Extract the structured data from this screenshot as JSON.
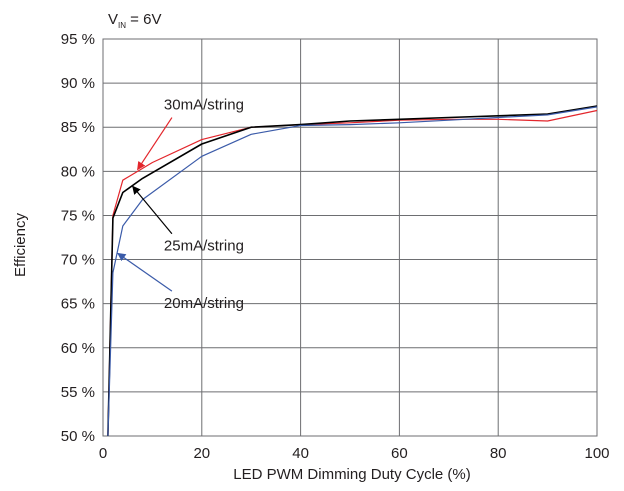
{
  "chart_data": {
    "type": "line",
    "xlabel": "LED PWM Dimming Duty Cycle (%)",
    "ylabel": "Efficiency",
    "xlim": [
      0,
      100
    ],
    "ylim": [
      50,
      95
    ],
    "x_ticks": [
      0,
      20,
      40,
      60,
      80,
      100
    ],
    "x_tick_labels": [
      "0",
      "20",
      "40",
      "60",
      "80",
      "100"
    ],
    "y_ticks": [
      50,
      55,
      60,
      65,
      70,
      75,
      80,
      85,
      90,
      95
    ],
    "y_tick_labels": [
      "50 %",
      "55 %",
      "60 %",
      "65 %",
      "70 %",
      "75 %",
      "80 %",
      "85 %",
      "90 %",
      "95 %"
    ],
    "grid": true,
    "condition": {
      "main": "V",
      "sub": "IN",
      "rest": " = 6V"
    },
    "series": [
      {
        "name": "30mA/string",
        "color": "#e3262c",
        "x": [
          1,
          2,
          4,
          10,
          20,
          30,
          40,
          50,
          60,
          70,
          80,
          90,
          100
        ],
        "y": [
          50,
          75,
          79,
          81,
          83.6,
          85,
          85.3,
          85.5,
          85.8,
          85.9,
          85.9,
          85.7,
          86.9
        ]
      },
      {
        "name": "25mA/string",
        "color": "#000000",
        "x": [
          1,
          2,
          4,
          8,
          20,
          30,
          40,
          50,
          60,
          70,
          80,
          90,
          100
        ],
        "y": [
          50,
          74.7,
          77.6,
          79.2,
          83.1,
          85,
          85.3,
          85.7,
          85.9,
          86.1,
          86.3,
          86.5,
          87.4
        ]
      },
      {
        "name": "20mA/string",
        "color": "#3b5ba9",
        "x": [
          1,
          2,
          4,
          8,
          20,
          30,
          40,
          50,
          60,
          70,
          80,
          90,
          100
        ],
        "y": [
          50,
          68.5,
          73.8,
          76.8,
          81.7,
          84.2,
          85.2,
          85.3,
          85.5,
          85.8,
          86.1,
          86.4,
          87.3
        ]
      }
    ],
    "annotations": [
      {
        "text": "30mA/string",
        "series": "30mA/string",
        "point_x": 7,
        "point_y": 80.2,
        "text_x": 18,
        "text_y": 87
      },
      {
        "text": "25mA/string",
        "series": "25mA/string",
        "point_x": 6,
        "point_y": 78.3,
        "text_x": 18,
        "text_y": 71
      },
      {
        "text": "20mA/string",
        "series": "20mA/string",
        "point_x": 3,
        "point_y": 70.7,
        "text_x": 18,
        "text_y": 64.5
      }
    ]
  }
}
